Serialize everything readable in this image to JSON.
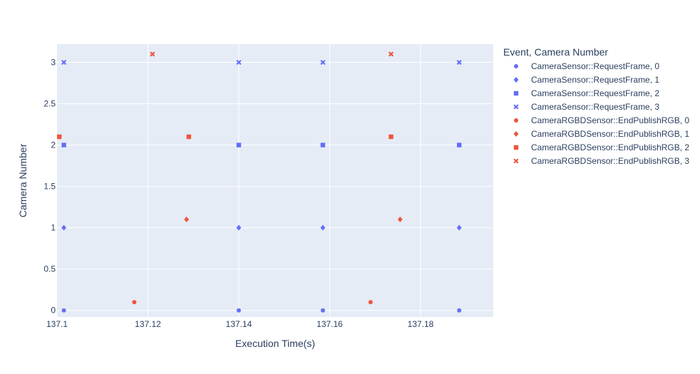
{
  "chart_data": {
    "type": "scatter",
    "xlabel": "Execution Time(s)",
    "ylabel": "Camera Number",
    "xlim": [
      137.1,
      137.196
    ],
    "ylim": [
      -0.08,
      3.22
    ],
    "xticks": [
      "137.1",
      "137.12",
      "137.14",
      "137.16",
      "137.18"
    ],
    "yticks": [
      "0",
      "0.5",
      "1",
      "1.5",
      "2",
      "2.5",
      "3"
    ],
    "grid": true,
    "legend": {
      "title": "Event, Camera Number",
      "placement": "right"
    },
    "colors": {
      "request": "#636efa",
      "publish": "#ef553b",
      "plot_bg": "#e5ecf6",
      "grid": "#ffffff"
    },
    "series": [
      {
        "name": "CameraSensor::RequestFrame, 0",
        "group": "request",
        "symbol": "circle",
        "x": [
          137.1015,
          137.14,
          137.1585,
          137.1885
        ],
        "y": [
          0,
          0,
          0,
          0
        ]
      },
      {
        "name": "CameraSensor::RequestFrame, 1",
        "group": "request",
        "symbol": "diamond",
        "x": [
          137.1015,
          137.14,
          137.1585,
          137.1885
        ],
        "y": [
          1,
          1,
          1,
          1
        ]
      },
      {
        "name": "CameraSensor::RequestFrame, 2",
        "group": "request",
        "symbol": "square",
        "x": [
          137.1015,
          137.14,
          137.1585,
          137.1885
        ],
        "y": [
          2,
          2,
          2,
          2
        ]
      },
      {
        "name": "CameraSensor::RequestFrame, 3",
        "group": "request",
        "symbol": "x",
        "x": [
          137.1015,
          137.14,
          137.1585,
          137.1885
        ],
        "y": [
          3,
          3,
          3,
          3
        ]
      },
      {
        "name": "CameraRGBDSensor::EndPublishRGB, 0",
        "group": "publish",
        "symbol": "circle",
        "x": [
          137.117,
          137.169
        ],
        "y": [
          0.1,
          0.1
        ]
      },
      {
        "name": "CameraRGBDSensor::EndPublishRGB, 1",
        "group": "publish",
        "symbol": "diamond",
        "x": [
          137.1285,
          137.1755
        ],
        "y": [
          1.1,
          1.1
        ]
      },
      {
        "name": "CameraRGBDSensor::EndPublishRGB, 2",
        "group": "publish",
        "symbol": "square",
        "x": [
          137.1005,
          137.129,
          137.1735
        ],
        "y": [
          2.1,
          2.1,
          2.1
        ]
      },
      {
        "name": "CameraRGBDSensor::EndPublishRGB, 3",
        "group": "publish",
        "symbol": "x",
        "x": [
          137.121,
          137.1735
        ],
        "y": [
          3.1,
          3.1
        ]
      }
    ]
  }
}
